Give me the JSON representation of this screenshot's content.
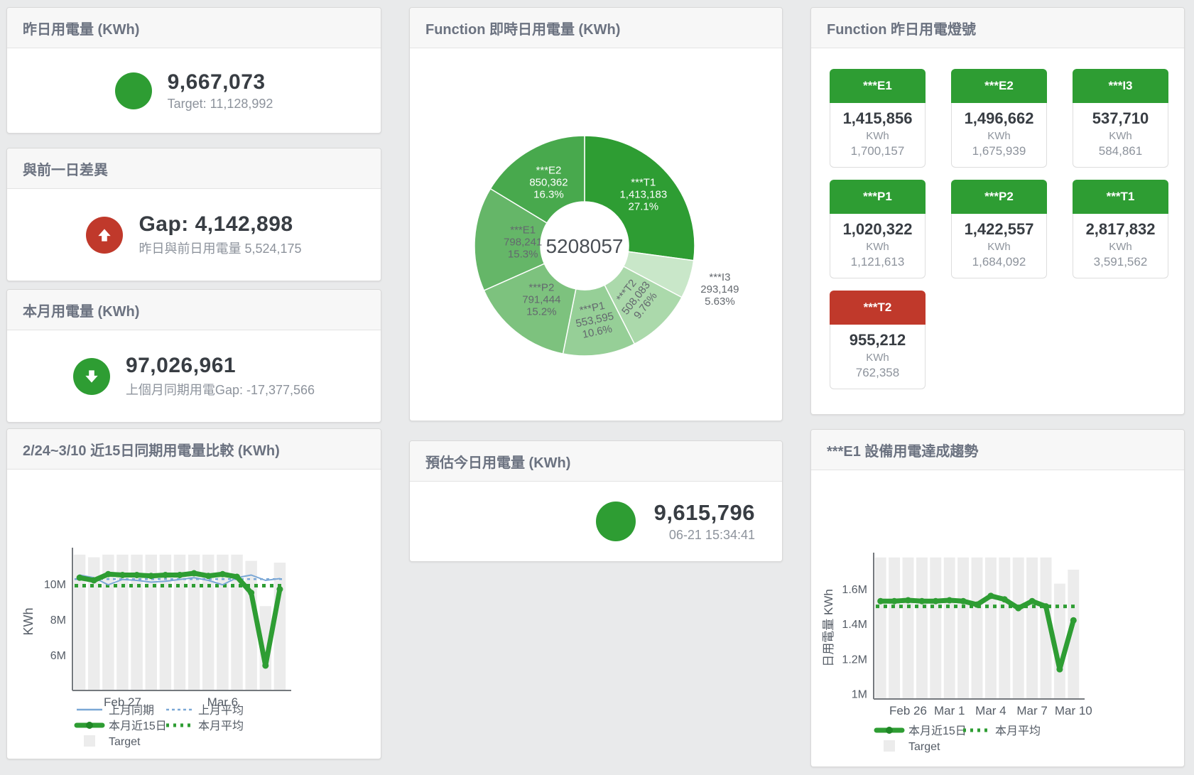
{
  "colors": {
    "green": "#2e9d33",
    "green_dark": "#1f8726",
    "red": "#c0392b",
    "blue": "#7aa7d6",
    "bar_gray": "#ececec",
    "text_dark": "#383d43",
    "text_muted": "#8d939c",
    "title_gray": "#6b7280"
  },
  "cards": {
    "yesterday": {
      "title": "昨日用電量 (KWh)",
      "value": "9,667,073",
      "sub": "Target: 11,128,992",
      "indicator": "green-circle"
    },
    "day_gap": {
      "title": "與前一日差異",
      "value": "Gap: 4,142,898",
      "sub": "昨日與前日用電量 5,524,175",
      "indicator": "red-up-arrow"
    },
    "month": {
      "title": "本月用電量 (KWh)",
      "value": "97,026,961",
      "sub": "上個月同期用電Gap: -17,377,566",
      "indicator": "green-down-arrow"
    },
    "realtime_donut": {
      "title": "Function 即時日用電量 (KWh)"
    },
    "estimate": {
      "title": "預估今日用電量 (KWh)",
      "value": "9,615,796",
      "sub": "06-21 15:34:41",
      "indicator": "green-circle"
    },
    "lights": {
      "title": "Function 昨日用電燈號",
      "unit": "KWh",
      "tiles": [
        {
          "label": "***E1",
          "value": "1,415,856",
          "target": "1,700,157",
          "status": "green"
        },
        {
          "label": "***E2",
          "value": "1,496,662",
          "target": "1,675,939",
          "status": "green"
        },
        {
          "label": "***I3",
          "value": "537,710",
          "target": "584,861",
          "status": "green"
        },
        {
          "label": "***P1",
          "value": "1,020,322",
          "target": "1,121,613",
          "status": "green"
        },
        {
          "label": "***P2",
          "value": "1,422,557",
          "target": "1,684,092",
          "status": "green"
        },
        {
          "label": "***T1",
          "value": "2,817,832",
          "target": "3,591,562",
          "status": "green"
        },
        {
          "label": "***T2",
          "value": "955,212",
          "target": "762,358",
          "status": "red"
        }
      ]
    },
    "compare": {
      "title": "2/24~3/10 近15日同期用電量比較 (KWh)"
    },
    "trend": {
      "title": "***E1 設備用電達成趨勢"
    }
  },
  "chart_data": [
    {
      "id": "donut",
      "type": "pie",
      "title": "Function 即時日用電量 (KWh)",
      "center_label": "5208057",
      "slices": [
        {
          "name": "***T1",
          "value": 1413183,
          "display": "1,413,183",
          "pct": "27.1%",
          "color": "#2e9d33",
          "label_color": "#ffffff"
        },
        {
          "name": "***I3",
          "value": 293149,
          "display": "293,149",
          "pct": "5.63%",
          "color": "#c9e7c9",
          "label_color": "#63686e",
          "outside": true
        },
        {
          "name": "***T2",
          "value": 508083,
          "display": "508,083",
          "pct": "9.76%",
          "color": "#abd9ab",
          "label_color": "#63686e",
          "rotate": -52
        },
        {
          "name": "***P1",
          "value": 553595,
          "display": "553,595",
          "pct": "10.6%",
          "color": "#96cf97",
          "label_color": "#63686e",
          "rotate": -12
        },
        {
          "name": "***P2",
          "value": 791444,
          "display": "791,444",
          "pct": "15.2%",
          "color": "#7dc27e",
          "label_color": "#63686e"
        },
        {
          "name": "***E1",
          "value": 798241,
          "display": "798,241",
          "pct": "15.3%",
          "color": "#65b668",
          "label_color": "#63686e"
        },
        {
          "name": "***E2",
          "value": 850362,
          "display": "850,362",
          "pct": "16.3%",
          "color": "#48a94d",
          "label_color": "#ffffff"
        }
      ]
    },
    {
      "id": "compare",
      "type": "line",
      "title": "2/24~3/10 近15日同期用電量比較 (KWh)",
      "ylabel": "KWh",
      "unit": "M KWh",
      "categories": [
        "Feb 24",
        "Feb 25",
        "Feb 26",
        "Feb 27",
        "Feb 28",
        "Mar 1",
        "Mar 2",
        "Mar 3",
        "Mar 4",
        "Mar 5",
        "Mar 6",
        "Mar 7",
        "Mar 8",
        "Mar 9",
        "Mar 10"
      ],
      "ylim": [
        4,
        11.8
      ],
      "yticks": [
        {
          "v": 6,
          "label": "6M"
        },
        {
          "v": 8,
          "label": "8M"
        },
        {
          "v": 10,
          "label": "10M"
        }
      ],
      "xticks": [
        {
          "i": 3,
          "label": "Feb 27"
        },
        {
          "i": 10,
          "label": "Mar 6"
        }
      ],
      "target_bars": [
        11.65,
        11.5,
        11.65,
        11.65,
        11.65,
        11.65,
        11.65,
        11.65,
        11.65,
        11.65,
        11.65,
        11.65,
        11.3,
        8.75,
        11.2
      ],
      "series": [
        {
          "name": "上月同期",
          "style": "thin",
          "color": "#7aa7d6",
          "values": [
            10.5,
            10.35,
            9.95,
            10.25,
            10.2,
            10.1,
            10.15,
            10.25,
            10.35,
            10.2,
            9.95,
            10.35,
            10.5,
            10.2,
            10.3
          ]
        },
        {
          "name": "本月近15日",
          "style": "thick",
          "color": "#2e9d33",
          "values": [
            10.35,
            10.2,
            10.55,
            10.5,
            10.5,
            10.45,
            10.5,
            10.5,
            10.6,
            10.45,
            10.55,
            10.4,
            9.5,
            5.4,
            9.7
          ]
        }
      ],
      "avg_lines": [
        {
          "name": "上月平均",
          "value": 10.27,
          "color": "#7aa7d6",
          "style": "dash-thin"
        },
        {
          "name": "本月平均",
          "value": 9.9,
          "color": "#2e9d33",
          "style": "dash-thick"
        }
      ],
      "legend": [
        [
          {
            "label": "上月同期",
            "swatch": "line-blue"
          },
          {
            "label": "上月平均",
            "swatch": "dash-blue"
          }
        ],
        [
          {
            "label": "本月近15日",
            "swatch": "line-green"
          },
          {
            "label": "本月平均",
            "swatch": "dash-green"
          }
        ],
        [
          {
            "label": "Target",
            "swatch": "box"
          }
        ]
      ]
    },
    {
      "id": "trend",
      "type": "line",
      "title": "***E1 設備用電達成趨勢",
      "ylabel": "日用電量 KWh",
      "unit": "M KWh",
      "categories": [
        "Feb 24",
        "Feb 25",
        "Feb 26",
        "Feb 27",
        "Feb 28",
        "Mar 1",
        "Mar 2",
        "Mar 3",
        "Mar 4",
        "Mar 5",
        "Mar 6",
        "Mar 7",
        "Mar 8",
        "Mar 9",
        "Mar 10"
      ],
      "ylim": [
        0.97,
        1.783
      ],
      "yticks": [
        {
          "v": 1,
          "label": "1M"
        },
        {
          "v": 1.2,
          "label": "1.2M"
        },
        {
          "v": 1.4,
          "label": "1.4M"
        },
        {
          "v": 1.6,
          "label": "1.6M"
        }
      ],
      "xticks": [
        {
          "i": 2,
          "label": "Feb 26"
        },
        {
          "i": 5,
          "label": "Mar 1"
        },
        {
          "i": 8,
          "label": "Mar 4"
        },
        {
          "i": 11,
          "label": "Mar 7"
        },
        {
          "i": 14,
          "label": "Mar 10"
        }
      ],
      "target_bars": [
        1.78,
        1.78,
        1.78,
        1.78,
        1.78,
        1.78,
        1.78,
        1.78,
        1.78,
        1.78,
        1.78,
        1.78,
        1.78,
        1.63,
        1.71
      ],
      "series": [
        {
          "name": "本月近15日",
          "style": "thick",
          "color": "#2e9d33",
          "values": [
            1.53,
            1.53,
            1.535,
            1.53,
            1.53,
            1.535,
            1.53,
            1.51,
            1.56,
            1.54,
            1.49,
            1.53,
            1.5,
            1.14,
            1.42
          ]
        }
      ],
      "avg_lines": [
        {
          "name": "本月平均",
          "value": 1.5,
          "color": "#2e9d33",
          "style": "dash-thick"
        }
      ],
      "legend": [
        [
          {
            "label": "本月近15日",
            "swatch": "line-green"
          },
          {
            "label": "本月平均",
            "swatch": "dash-green"
          }
        ],
        [
          {
            "label": "Target",
            "swatch": "box"
          }
        ]
      ]
    }
  ]
}
